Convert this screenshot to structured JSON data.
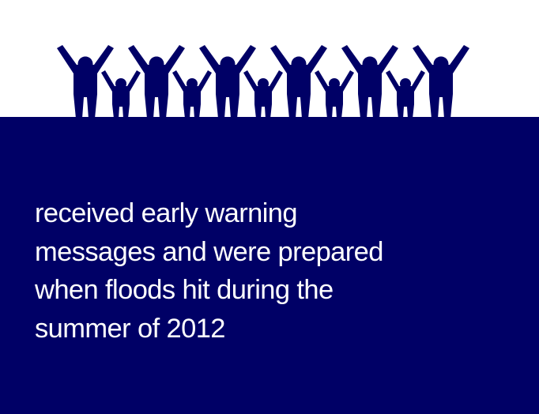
{
  "colors": {
    "background": "#ffffff",
    "panel": "#000066",
    "figures": "#000066",
    "text": "#ffffff"
  },
  "icon": "people-cheering-icon",
  "message": {
    "lines": [
      "received early warning",
      "messages and were prepared",
      "when floods hit during the",
      "summer of 2012"
    ]
  }
}
